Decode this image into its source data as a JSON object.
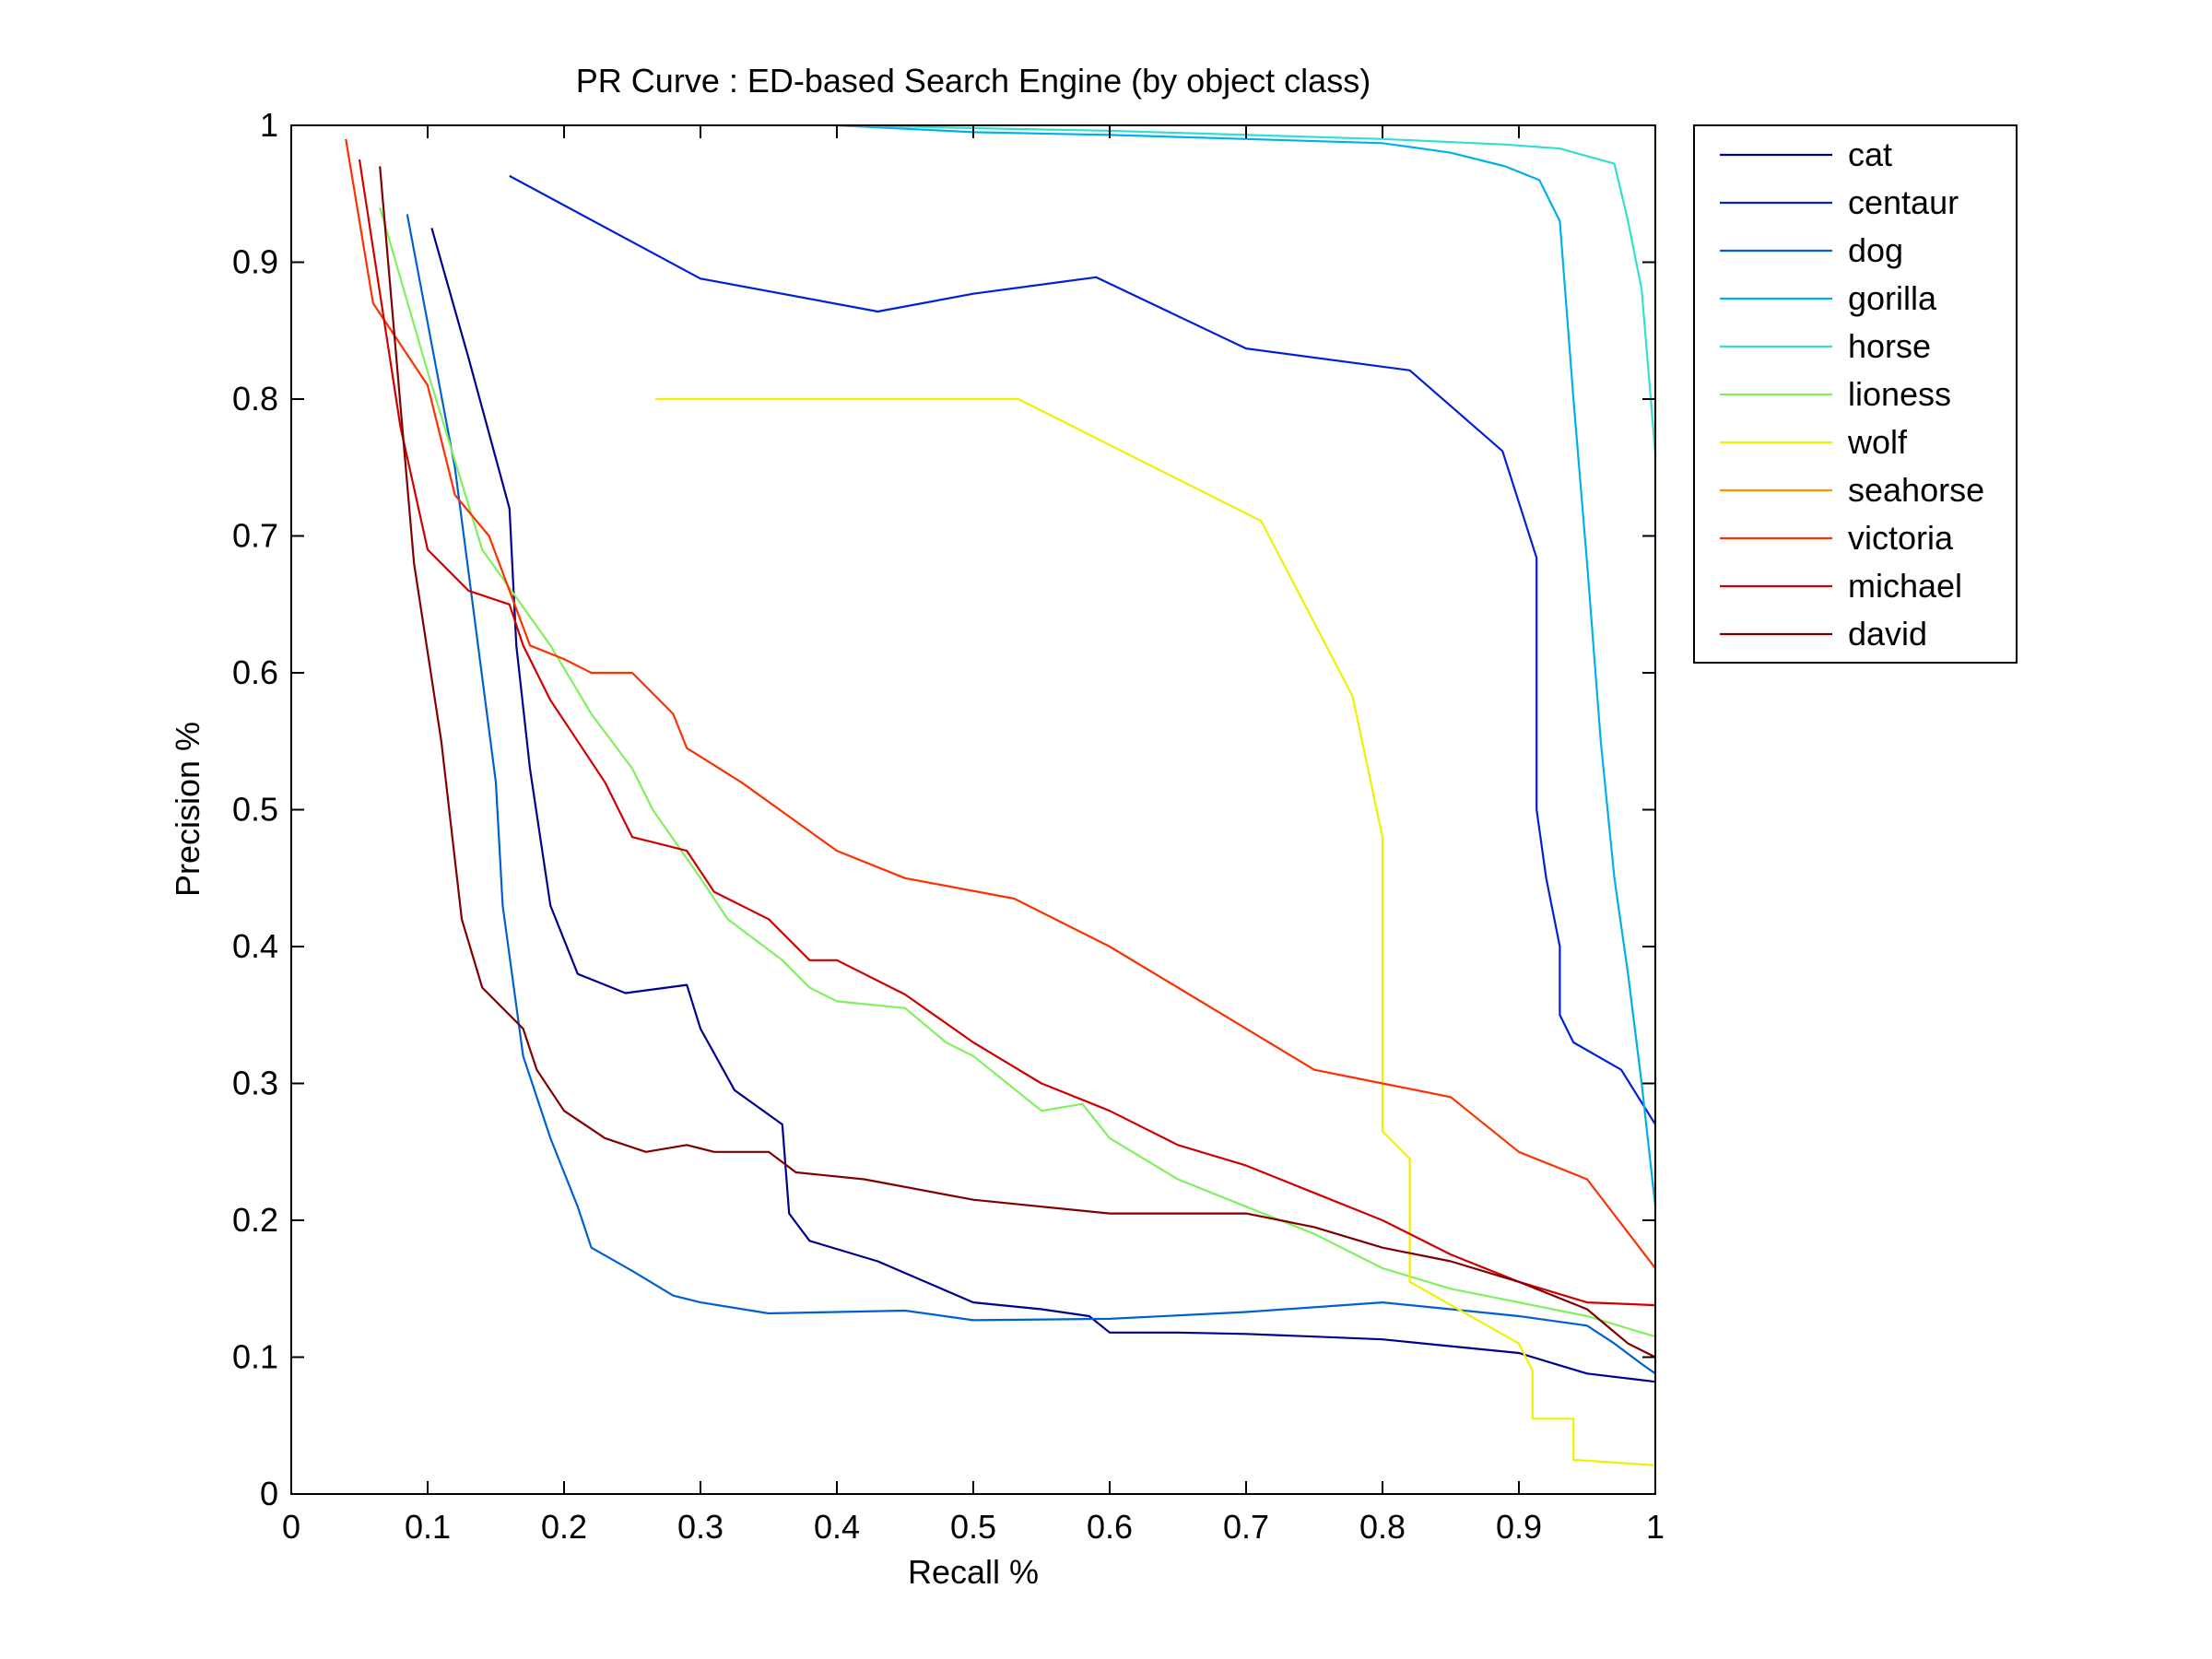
{
  "chart_data": {
    "type": "line",
    "title": "PR Curve : ED-based Search Engine (by object class)",
    "xlabel": "Recall %",
    "ylabel": "Precision %",
    "xlim": [
      0,
      1
    ],
    "ylim": [
      0,
      1
    ],
    "xticks": [
      "0",
      "0.1",
      "0.2",
      "0.3",
      "0.4",
      "0.5",
      "0.6",
      "0.7",
      "0.8",
      "0.9",
      "1"
    ],
    "yticks": [
      "0",
      "0.1",
      "0.2",
      "0.3",
      "0.4",
      "0.5",
      "0.6",
      "0.7",
      "0.8",
      "0.9",
      "1"
    ],
    "grid": false,
    "legend_position": "outside-top-right",
    "series": [
      {
        "name": "cat",
        "color": "#00008F",
        "x": [
          0.103,
          0.13,
          0.16,
          0.165,
          0.175,
          0.19,
          0.21,
          0.245,
          0.29,
          0.3,
          0.325,
          0.36,
          0.365,
          0.38,
          0.43,
          0.5,
          0.55,
          0.585,
          0.6,
          0.65,
          0.7,
          0.75,
          0.8,
          0.85,
          0.9,
          0.93,
          0.95,
          1.0
        ],
        "y": [
          0.925,
          0.83,
          0.72,
          0.62,
          0.53,
          0.43,
          0.38,
          0.366,
          0.372,
          0.34,
          0.295,
          0.27,
          0.205,
          0.185,
          0.17,
          0.14,
          0.135,
          0.13,
          0.118,
          0.118,
          0.117,
          0.115,
          0.113,
          0.108,
          0.103,
          0.094,
          0.088,
          0.082
        ]
      },
      {
        "name": "centaur",
        "color": "#0020D8",
        "x": [
          0.16,
          0.3,
          0.43,
          0.5,
          0.59,
          0.7,
          0.82,
          0.888,
          0.913,
          0.913,
          0.92,
          0.93,
          0.93,
          0.94,
          0.975,
          1.0
        ],
        "y": [
          0.963,
          0.888,
          0.864,
          0.877,
          0.889,
          0.837,
          0.821,
          0.762,
          0.684,
          0.5,
          0.45,
          0.4,
          0.35,
          0.33,
          0.31,
          0.27
        ]
      },
      {
        "name": "dog",
        "color": "#0060D0",
        "x": [
          0.085,
          0.12,
          0.15,
          0.155,
          0.17,
          0.19,
          0.21,
          0.22,
          0.25,
          0.28,
          0.3,
          0.35,
          0.4,
          0.45,
          0.5,
          0.6,
          0.7,
          0.8,
          0.85,
          0.9,
          0.95,
          0.97,
          0.99,
          1.0
        ],
        "y": [
          0.935,
          0.75,
          0.52,
          0.43,
          0.32,
          0.26,
          0.21,
          0.18,
          0.163,
          0.145,
          0.14,
          0.132,
          0.133,
          0.134,
          0.127,
          0.128,
          0.133,
          0.14,
          0.135,
          0.13,
          0.123,
          0.11,
          0.095,
          0.088
        ]
      },
      {
        "name": "gorilla",
        "color": "#00B0E8",
        "x": [
          0.4,
          0.5,
          0.6,
          0.7,
          0.8,
          0.85,
          0.89,
          0.915,
          0.93,
          0.94,
          0.95,
          0.96,
          0.97,
          0.98,
          0.99,
          1.0
        ],
        "y": [
          1.0,
          0.995,
          0.993,
          0.99,
          0.987,
          0.98,
          0.97,
          0.96,
          0.93,
          0.8,
          0.68,
          0.55,
          0.45,
          0.38,
          0.3,
          0.21
        ]
      },
      {
        "name": "horse",
        "color": "#30E0D0",
        "x": [
          0.41,
          0.5,
          0.6,
          0.7,
          0.8,
          0.89,
          0.93,
          0.97,
          0.98,
          0.99,
          1.0
        ],
        "y": [
          1.0,
          0.998,
          0.996,
          0.993,
          0.99,
          0.986,
          0.983,
          0.972,
          0.93,
          0.88,
          0.76
        ]
      },
      {
        "name": "lioness",
        "color": "#80F060",
        "x": [
          0.065,
          0.1,
          0.14,
          0.19,
          0.22,
          0.25,
          0.265,
          0.3,
          0.32,
          0.36,
          0.38,
          0.4,
          0.45,
          0.48,
          0.5,
          0.55,
          0.58,
          0.6,
          0.65,
          0.7,
          0.75,
          0.8,
          0.85,
          0.9,
          0.95,
          1.0
        ],
        "y": [
          0.94,
          0.82,
          0.69,
          0.62,
          0.57,
          0.53,
          0.5,
          0.45,
          0.42,
          0.39,
          0.37,
          0.36,
          0.355,
          0.33,
          0.32,
          0.28,
          0.285,
          0.26,
          0.23,
          0.21,
          0.19,
          0.165,
          0.15,
          0.14,
          0.13,
          0.115
        ]
      },
      {
        "name": "wolf",
        "color": "#F0F000",
        "x": [
          0.267,
          0.533,
          0.711,
          0.778,
          0.8,
          0.8,
          0.82,
          0.82,
          0.9,
          0.91,
          0.91,
          0.94,
          0.94,
          1.0
        ],
        "y": [
          0.8,
          0.8,
          0.711,
          0.583,
          0.48,
          0.265,
          0.245,
          0.155,
          0.11,
          0.09,
          0.055,
          0.055,
          0.025,
          0.021
        ]
      },
      {
        "name": "seahorse",
        "color": "#FF9000",
        "x": [
          1.0,
          1.0
        ],
        "y": [
          1.0,
          0.04
        ]
      },
      {
        "name": "victoria",
        "color": "#FF3000",
        "x": [
          0.04,
          0.06,
          0.1,
          0.12,
          0.145,
          0.16,
          0.175,
          0.2,
          0.22,
          0.25,
          0.28,
          0.29,
          0.33,
          0.4,
          0.45,
          0.53,
          0.6,
          0.65,
          0.7,
          0.75,
          0.8,
          0.85,
          0.9,
          0.95,
          1.0
        ],
        "y": [
          0.99,
          0.87,
          0.81,
          0.73,
          0.7,
          0.66,
          0.62,
          0.61,
          0.6,
          0.6,
          0.57,
          0.545,
          0.52,
          0.47,
          0.45,
          0.435,
          0.4,
          0.37,
          0.34,
          0.31,
          0.3,
          0.29,
          0.25,
          0.23,
          0.165
        ]
      },
      {
        "name": "michael",
        "color": "#D00000",
        "x": [
          0.05,
          0.08,
          0.1,
          0.13,
          0.16,
          0.17,
          0.19,
          0.21,
          0.23,
          0.25,
          0.27,
          0.29,
          0.31,
          0.35,
          0.38,
          0.4,
          0.45,
          0.5,
          0.55,
          0.6,
          0.65,
          0.7,
          0.75,
          0.8,
          0.85,
          0.9,
          0.95,
          1.0
        ],
        "y": [
          0.975,
          0.78,
          0.69,
          0.66,
          0.65,
          0.62,
          0.58,
          0.55,
          0.52,
          0.48,
          0.475,
          0.47,
          0.44,
          0.42,
          0.39,
          0.39,
          0.365,
          0.33,
          0.3,
          0.28,
          0.255,
          0.24,
          0.22,
          0.2,
          0.175,
          0.155,
          0.14,
          0.138
        ]
      },
      {
        "name": "david",
        "color": "#800000",
        "x": [
          0.065,
          0.09,
          0.11,
          0.125,
          0.14,
          0.17,
          0.18,
          0.2,
          0.23,
          0.26,
          0.29,
          0.31,
          0.35,
          0.37,
          0.42,
          0.5,
          0.55,
          0.6,
          0.65,
          0.7,
          0.75,
          0.8,
          0.85,
          0.9,
          0.95,
          0.98,
          1.0
        ],
        "y": [
          0.97,
          0.68,
          0.55,
          0.42,
          0.37,
          0.34,
          0.31,
          0.28,
          0.26,
          0.25,
          0.255,
          0.25,
          0.25,
          0.235,
          0.23,
          0.215,
          0.21,
          0.205,
          0.205,
          0.205,
          0.195,
          0.18,
          0.17,
          0.155,
          0.135,
          0.11,
          0.1
        ]
      }
    ]
  }
}
